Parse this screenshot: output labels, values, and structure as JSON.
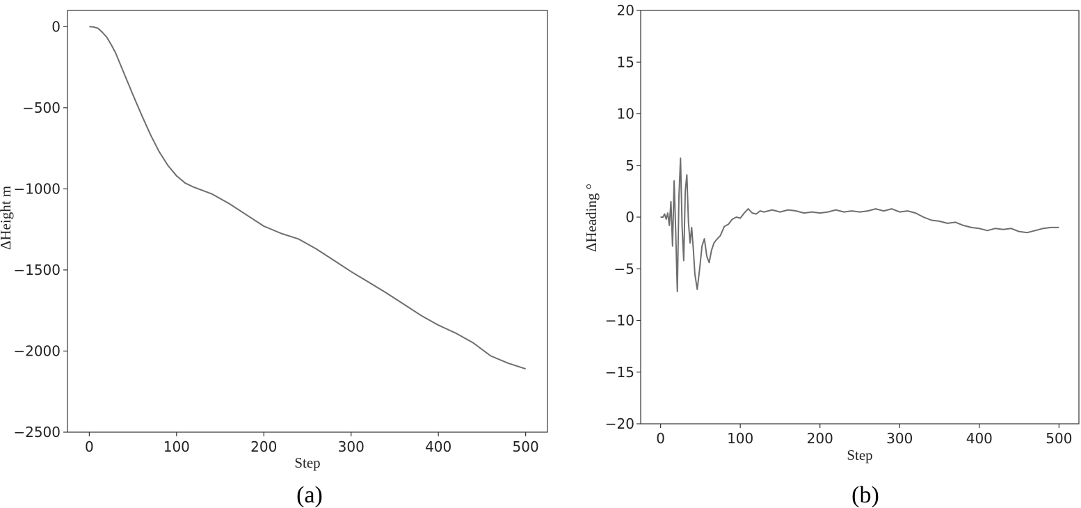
{
  "chart_data": [
    {
      "type": "line",
      "panel_label": "(a)",
      "xlabel": "Step",
      "ylabel": "ΔHeight m",
      "xlim": [
        -25,
        525
      ],
      "ylim": [
        -2500,
        100
      ],
      "xticks": [
        "0",
        "100",
        "200",
        "300",
        "400",
        "500"
      ],
      "yticks": [
        "0",
        "−500",
        "−1000",
        "−1500",
        "−2000",
        "−2500"
      ],
      "grid": false,
      "series": [
        {
          "color": "#6e6e6e",
          "x": [
            0,
            5,
            10,
            15,
            20,
            25,
            30,
            40,
            50,
            60,
            70,
            80,
            90,
            100,
            110,
            120,
            140,
            160,
            180,
            200,
            220,
            240,
            260,
            280,
            300,
            320,
            340,
            360,
            380,
            400,
            420,
            440,
            460,
            480,
            500
          ],
          "y": [
            0,
            -2,
            -10,
            -35,
            -65,
            -110,
            -160,
            -290,
            -420,
            -545,
            -665,
            -770,
            -855,
            -920,
            -965,
            -990,
            -1030,
            -1090,
            -1160,
            -1230,
            -1275,
            -1310,
            -1370,
            -1440,
            -1510,
            -1575,
            -1640,
            -1710,
            -1780,
            -1840,
            -1890,
            -1950,
            -2030,
            -2075,
            -2110
          ]
        }
      ]
    },
    {
      "type": "line",
      "panel_label": "(b)",
      "xlabel": "Step",
      "ylabel": "ΔHeading °",
      "xlim": [
        -25,
        525
      ],
      "ylim": [
        -20,
        20
      ],
      "xticks": [
        "0",
        "100",
        "200",
        "300",
        "400",
        "500"
      ],
      "yticks": [
        "20",
        "15",
        "10",
        "5",
        "0",
        "−5",
        "−10",
        "−15",
        "−20"
      ],
      "grid": false,
      "series": [
        {
          "color": "#6e6e6e",
          "x": [
            0,
            3,
            5,
            7,
            9,
            11,
            13,
            15,
            17,
            19,
            21,
            23,
            25,
            27,
            29,
            31,
            33,
            35,
            37,
            39,
            41,
            43,
            46,
            49,
            52,
            55,
            58,
            61,
            64,
            67,
            70,
            75,
            80,
            85,
            90,
            95,
            100,
            105,
            110,
            115,
            120,
            125,
            130,
            140,
            150,
            160,
            170,
            180,
            190,
            200,
            210,
            220,
            230,
            240,
            250,
            260,
            270,
            280,
            290,
            300,
            310,
            320,
            330,
            340,
            350,
            360,
            370,
            380,
            390,
            400,
            410,
            420,
            430,
            440,
            450,
            460,
            470,
            480,
            490,
            500
          ],
          "y": [
            0,
            0,
            0.3,
            -0.2,
            0.4,
            -0.8,
            1.5,
            -2.8,
            3.5,
            -1.5,
            -7.2,
            2.0,
            5.7,
            -1.0,
            -4.2,
            2.5,
            4.1,
            -0.5,
            -2.5,
            -1.0,
            -3.0,
            -5.5,
            -7.0,
            -5.0,
            -2.8,
            -2.1,
            -3.8,
            -4.4,
            -3.2,
            -2.5,
            -2.2,
            -1.8,
            -0.9,
            -0.7,
            -0.2,
            0.0,
            -0.1,
            0.4,
            0.8,
            0.4,
            0.3,
            0.6,
            0.5,
            0.7,
            0.5,
            0.7,
            0.6,
            0.4,
            0.5,
            0.4,
            0.5,
            0.7,
            0.5,
            0.6,
            0.5,
            0.6,
            0.8,
            0.6,
            0.8,
            0.5,
            0.6,
            0.4,
            0.0,
            -0.3,
            -0.4,
            -0.6,
            -0.5,
            -0.8,
            -1.0,
            -1.1,
            -1.3,
            -1.1,
            -1.2,
            -1.1,
            -1.4,
            -1.5,
            -1.3,
            -1.1,
            -1.0,
            -1.0
          ]
        }
      ]
    }
  ]
}
